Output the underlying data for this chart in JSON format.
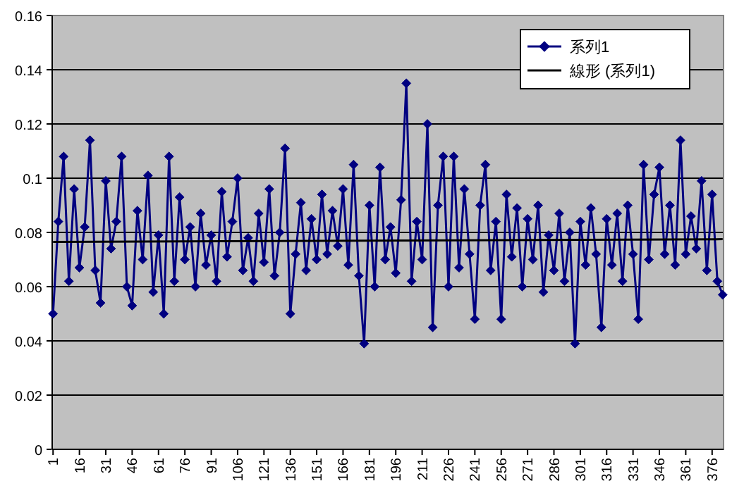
{
  "chart_data": {
    "type": "line",
    "x": [
      1,
      4,
      7,
      10,
      13,
      16,
      19,
      22,
      25,
      28,
      31,
      34,
      37,
      40,
      43,
      46,
      49,
      52,
      55,
      58,
      61,
      64,
      67,
      70,
      73,
      76,
      79,
      82,
      85,
      88,
      91,
      94,
      97,
      100,
      103,
      106,
      109,
      112,
      115,
      118,
      121,
      124,
      127,
      130,
      133,
      136,
      139,
      142,
      145,
      148,
      151,
      154,
      157,
      160,
      163,
      166,
      169,
      172,
      175,
      178,
      181,
      184,
      187,
      190,
      193,
      196,
      199,
      202,
      205,
      208,
      211,
      214,
      217,
      220,
      223,
      226,
      229,
      232,
      235,
      238,
      241,
      244,
      247,
      250,
      253,
      256,
      259,
      262,
      265,
      268,
      271,
      274,
      277,
      280,
      283,
      286,
      289,
      292,
      295,
      298,
      301,
      304,
      307,
      310,
      313,
      316,
      319,
      322,
      325,
      328,
      331,
      334,
      337,
      340,
      343,
      346,
      349,
      352,
      355,
      358,
      361,
      364,
      367,
      370,
      373,
      376,
      379,
      382
    ],
    "series": [
      {
        "name": "系列1",
        "color": "#000080",
        "marker": "diamond",
        "values": [
          0.05,
          0.084,
          0.108,
          0.062,
          0.096,
          0.067,
          0.082,
          0.114,
          0.066,
          0.054,
          0.099,
          0.074,
          0.084,
          0.108,
          0.06,
          0.053,
          0.088,
          0.07,
          0.101,
          0.058,
          0.079,
          0.05,
          0.108,
          0.062,
          0.093,
          0.07,
          0.082,
          0.06,
          0.087,
          0.068,
          0.079,
          0.062,
          0.095,
          0.071,
          0.084,
          0.1,
          0.066,
          0.078,
          0.062,
          0.087,
          0.069,
          0.096,
          0.064,
          0.08,
          0.111,
          0.05,
          0.072,
          0.091,
          0.066,
          0.085,
          0.07,
          0.094,
          0.072,
          0.088,
          0.075,
          0.096,
          0.068,
          0.105,
          0.064,
          0.039,
          0.09,
          0.06,
          0.104,
          0.07,
          0.082,
          0.065,
          0.092,
          0.135,
          0.062,
          0.084,
          0.07,
          0.12,
          0.045,
          0.09,
          0.108,
          0.06,
          0.108,
          0.067,
          0.096,
          0.072,
          0.048,
          0.09,
          0.105,
          0.066,
          0.084,
          0.048,
          0.094,
          0.071,
          0.089,
          0.06,
          0.085,
          0.07,
          0.09,
          0.058,
          0.079,
          0.066,
          0.087,
          0.062,
          0.08,
          0.039,
          0.084,
          0.068,
          0.089,
          0.072,
          0.045,
          0.085,
          0.068,
          0.087,
          0.062,
          0.09,
          0.072,
          0.048,
          0.105,
          0.07,
          0.094,
          0.104,
          0.072,
          0.09,
          0.068,
          0.114,
          0.072,
          0.086,
          0.074,
          0.099,
          0.066,
          0.094,
          0.062,
          0.057
        ]
      },
      {
        "name": "線形 (系列1)",
        "type": "line",
        "color": "#000000",
        "marker": "none",
        "x": [
          1,
          382
        ],
        "values": [
          0.0765,
          0.0775
        ]
      }
    ],
    "xlim": [
      0.5,
      382.5
    ],
    "xticks": [
      1,
      16,
      31,
      46,
      61,
      76,
      91,
      106,
      121,
      136,
      151,
      166,
      181,
      196,
      211,
      226,
      241,
      256,
      271,
      286,
      301,
      316,
      331,
      346,
      361,
      376
    ],
    "ylim": [
      0,
      0.16
    ],
    "yticks": [
      0,
      0.02,
      0.04,
      0.06,
      0.08,
      0.1,
      0.12,
      0.14,
      0.16
    ],
    "grid": "y",
    "legend": "top right"
  }
}
